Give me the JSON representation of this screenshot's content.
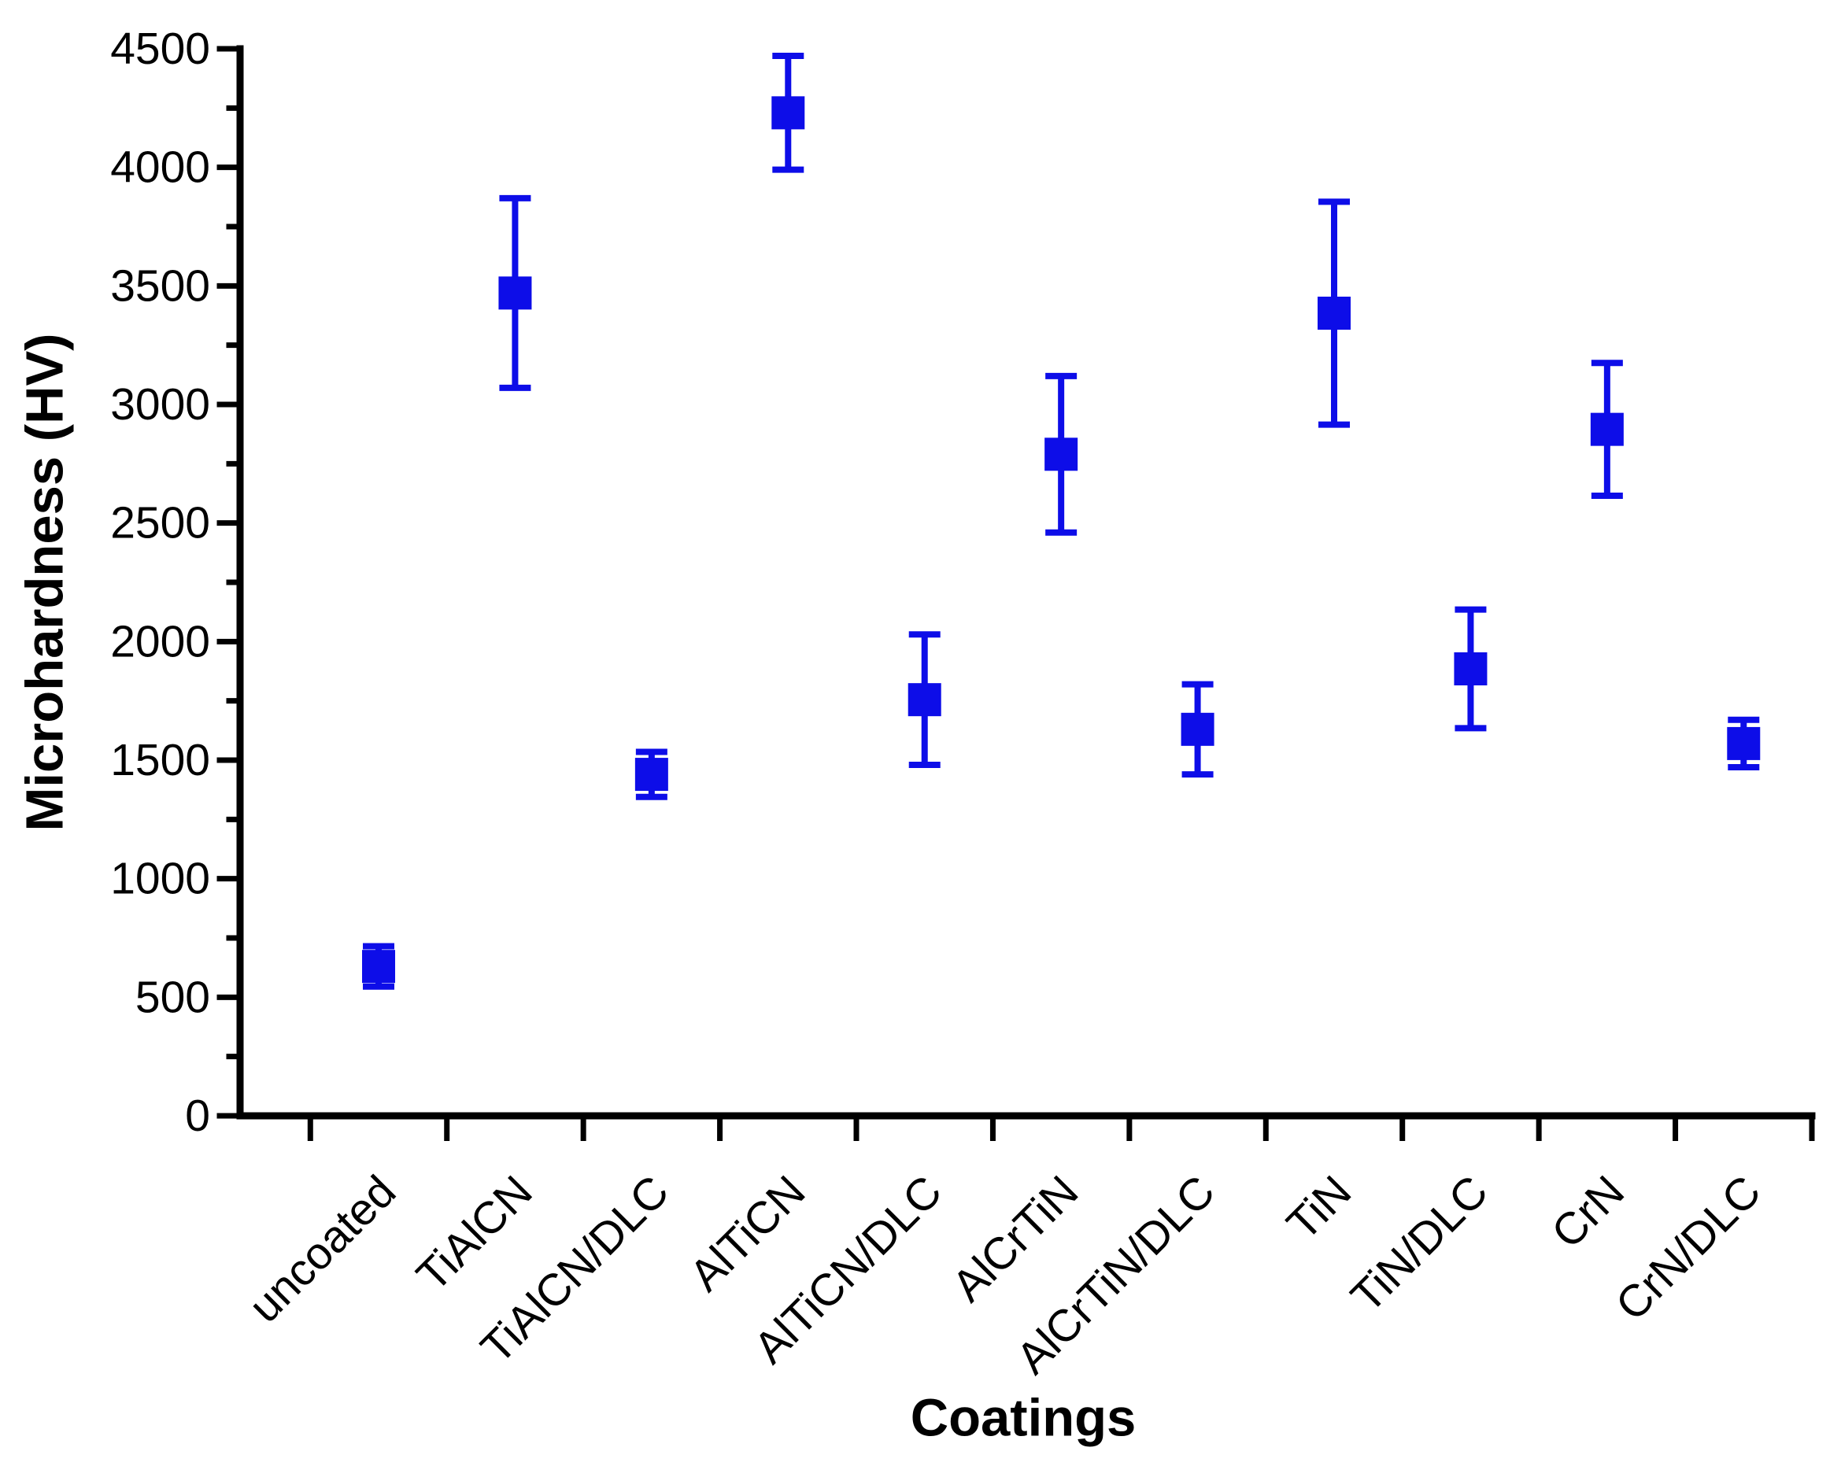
{
  "chart_data": {
    "type": "scatter",
    "title": "",
    "xlabel": "Coatings",
    "ylabel": "Microhardness (HV)",
    "categories": [
      "uncoated",
      "TiAlCN",
      "TiAlCN/DLC",
      "AlTiCN",
      "AlTiCN/DLC",
      "AlCrTiN",
      "AlCrTiN/DLC",
      "TiN",
      "TiN/DLC",
      "CrN",
      "CrN/DLC"
    ],
    "series": [
      {
        "name": "Microhardness",
        "marker": "square",
        "color": "#0d0de8",
        "values": [
          630,
          3470,
          1440,
          4230,
          1755,
          2790,
          1630,
          3385,
          1885,
          2895,
          1570
        ],
        "errors": [
          85,
          400,
          95,
          240,
          275,
          330,
          190,
          470,
          250,
          280,
          100
        ]
      }
    ],
    "ylim": [
      0,
      4500
    ],
    "ytick_step": 500,
    "ytick_minor_step": 250,
    "ytick_labels": [
      "0",
      "500",
      "1000",
      "1500",
      "2000",
      "2500",
      "3000",
      "3500",
      "4000",
      "4500"
    ],
    "xtick_rotation_deg": -45,
    "grid": false,
    "legend": false,
    "axis_color": "#000000",
    "text_color": "#000000",
    "background": "#ffffff"
  }
}
